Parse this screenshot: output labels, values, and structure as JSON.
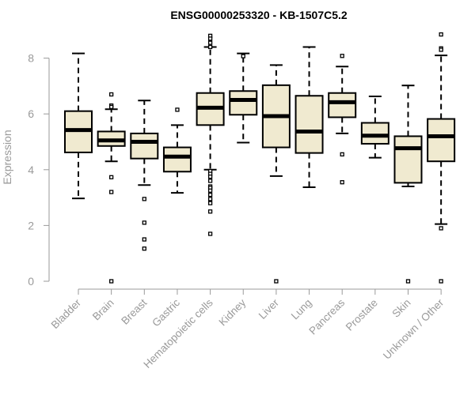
{
  "chart_data": {
    "type": "box",
    "title": "ENSG00000253320 - KB-1507C5.2",
    "ylabel": "Expression",
    "xlabel": "",
    "ylim": [
      0,
      8.8
    ],
    "yticks": [
      0,
      2,
      4,
      6,
      8
    ],
    "box_fill": "#f0ead0",
    "box_stroke": "#000000",
    "axis_color": "#9a9a9a",
    "categories": [
      "Bladder",
      "Brain",
      "Breast",
      "Gastric",
      "Hematopoietic cells",
      "Kidney",
      "Liver",
      "Lung",
      "Pancreas",
      "Prostate",
      "Skin",
      "Unknown / Other"
    ],
    "boxes": [
      {
        "category": "Bladder",
        "whisker_low": 2.97,
        "q1": 4.62,
        "median": 5.42,
        "q3": 6.1,
        "whisker_high": 8.17,
        "outliers": []
      },
      {
        "category": "Brain",
        "whisker_low": 4.3,
        "q1": 4.85,
        "median": 5.05,
        "q3": 5.37,
        "whisker_high": 6.17,
        "outliers": [
          6.7,
          6.3,
          6.25,
          3.73,
          3.2,
          0
        ]
      },
      {
        "category": "Breast",
        "whisker_low": 3.45,
        "q1": 4.4,
        "median": 5.0,
        "q3": 5.3,
        "whisker_high": 6.48,
        "outliers": [
          2.95,
          2.1,
          1.5,
          1.17
        ]
      },
      {
        "category": "Gastric",
        "whisker_low": 3.17,
        "q1": 3.93,
        "median": 4.47,
        "q3": 4.8,
        "whisker_high": 5.6,
        "outliers": [
          6.15
        ]
      },
      {
        "category": "Hematopoietic cells",
        "whisker_low": 4.0,
        "q1": 5.6,
        "median": 6.22,
        "q3": 6.75,
        "whisker_high": 8.4,
        "outliers": [
          8.8,
          8.7,
          8.55,
          8.4,
          3.95,
          3.85,
          3.75,
          3.6,
          3.4,
          3.35,
          3.25,
          3.1,
          2.95,
          2.8,
          2.5,
          1.7
        ]
      },
      {
        "category": "Kidney",
        "whisker_low": 4.97,
        "q1": 5.97,
        "median": 6.5,
        "q3": 6.82,
        "whisker_high": 8.17,
        "outliers": [
          8.07
        ]
      },
      {
        "category": "Liver",
        "whisker_low": 3.77,
        "q1": 4.8,
        "median": 5.92,
        "q3": 7.03,
        "whisker_high": 7.75,
        "outliers": [
          0
        ]
      },
      {
        "category": "Lung",
        "whisker_low": 3.37,
        "q1": 4.6,
        "median": 5.37,
        "q3": 6.65,
        "whisker_high": 8.4,
        "outliers": []
      },
      {
        "category": "Pancreas",
        "whisker_low": 5.3,
        "q1": 5.88,
        "median": 6.42,
        "q3": 6.75,
        "whisker_high": 7.7,
        "outliers": [
          8.08,
          4.55,
          3.55
        ]
      },
      {
        "category": "Prostate",
        "whisker_low": 4.43,
        "q1": 4.93,
        "median": 5.22,
        "q3": 5.68,
        "whisker_high": 6.63,
        "outliers": []
      },
      {
        "category": "Skin",
        "whisker_low": 3.4,
        "q1": 3.53,
        "median": 4.77,
        "q3": 5.2,
        "whisker_high": 7.02,
        "outliers": [
          0
        ]
      },
      {
        "category": "Unknown / Other",
        "whisker_low": 2.05,
        "q1": 4.3,
        "median": 5.2,
        "q3": 5.82,
        "whisker_high": 8.1,
        "outliers": [
          8.85,
          8.35,
          8.3,
          1.9,
          0
        ]
      }
    ]
  }
}
